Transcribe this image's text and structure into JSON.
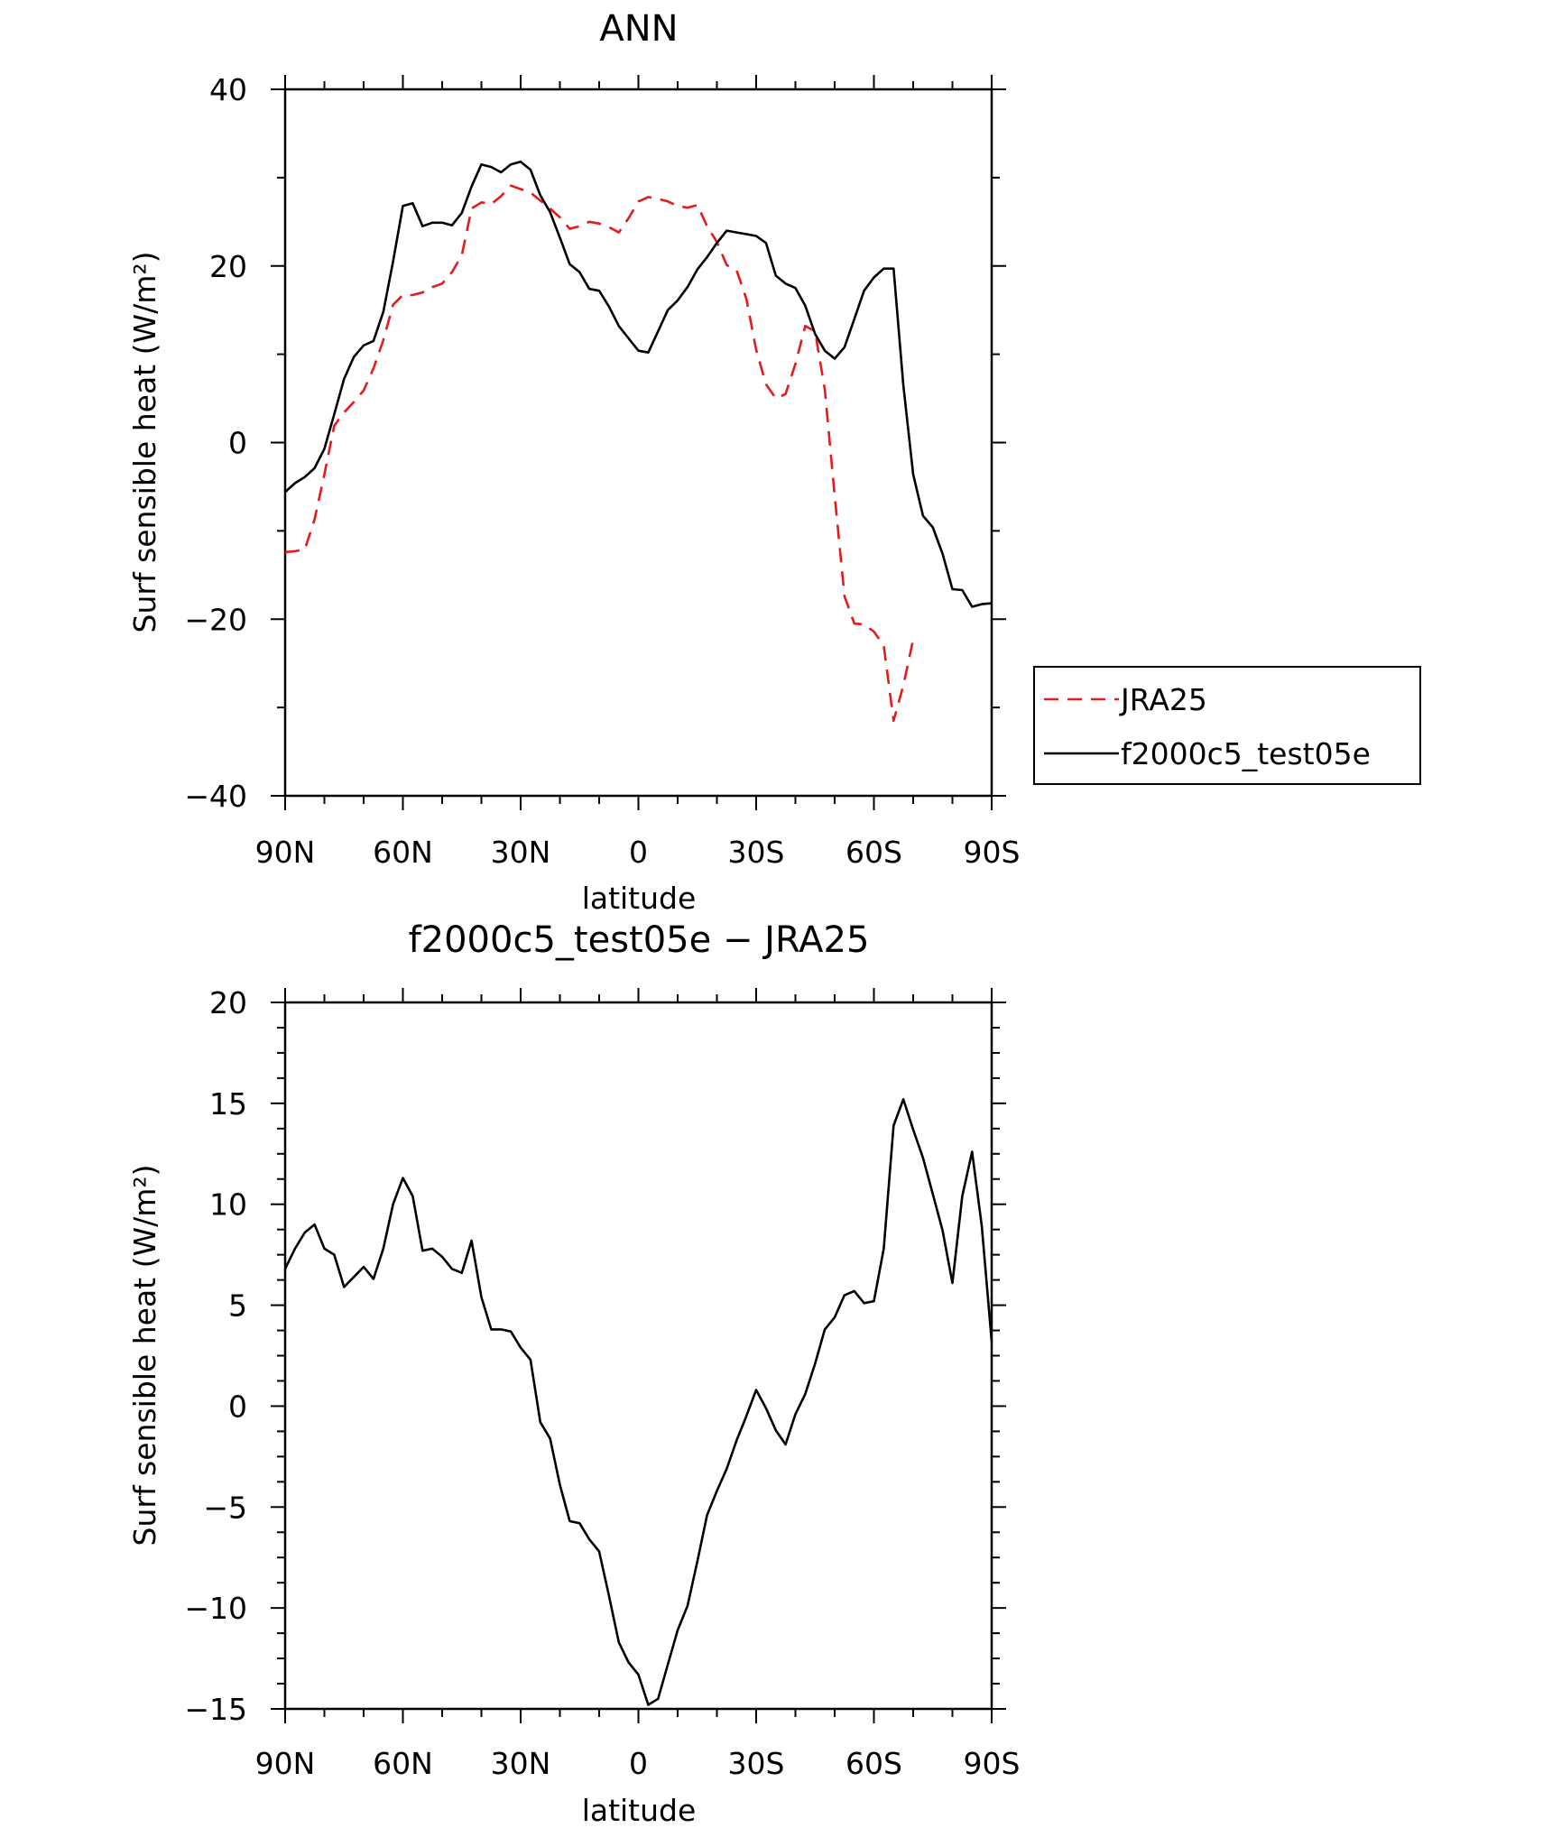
{
  "chart_data": [
    {
      "type": "line",
      "title": "ANN",
      "xlabel": "latitude",
      "ylabel": "Surf sensible heat (W/m²)",
      "xlim": [
        90,
        -90
      ],
      "ylim": [
        -40,
        40
      ],
      "x_ticks": [
        {
          "value": 90,
          "label": "90N"
        },
        {
          "value": 60,
          "label": "60N"
        },
        {
          "value": 30,
          "label": "30N"
        },
        {
          "value": 0,
          "label": "0"
        },
        {
          "value": -30,
          "label": "30S"
        },
        {
          "value": -60,
          "label": "60S"
        },
        {
          "value": -90,
          "label": "90S"
        }
      ],
      "y_ticks": [
        {
          "value": 40,
          "label": "40"
        },
        {
          "value": 20,
          "label": "20"
        },
        {
          "value": 0,
          "label": "0"
        },
        {
          "value": -20,
          "label": "−20"
        },
        {
          "value": -40,
          "label": "−40"
        }
      ],
      "legend": {
        "position": "right"
      },
      "series": [
        {
          "name": "JRA25",
          "color": "#e41a1c",
          "dash": "dashed",
          "x": [
            90,
            87.5,
            85,
            82.5,
            80,
            77.5,
            75,
            72.5,
            70,
            67.5,
            65,
            62.5,
            60,
            57.5,
            55,
            52.5,
            50,
            47.5,
            45,
            42.5,
            40,
            37.5,
            35,
            32.5,
            30,
            27.5,
            25,
            22.5,
            20,
            17.5,
            15,
            12.5,
            10,
            7.5,
            5,
            2.5,
            0,
            -2.5,
            -5,
            -7.5,
            -10,
            -12.5,
            -15,
            -17.5,
            -20,
            -22.5,
            -25,
            -27.5,
            -30,
            -32.5,
            -35,
            -37.5,
            -40,
            -42.5,
            -45,
            -47.5,
            -50,
            -52.5,
            -55,
            -57.5,
            -60,
            -62.5,
            -65,
            -67.5,
            -70,
            -72.5,
            -75,
            -77.5,
            -80,
            -82.5,
            -85,
            -87.5,
            -90
          ],
          "values": [
            -12.4,
            -12.3,
            -12.1,
            -8.7,
            -3.6,
            1.9,
            3.4,
            4.6,
            5.9,
            8.4,
            11.6,
            15.6,
            16.7,
            16.7,
            17.0,
            17.6,
            18.0,
            19.3,
            21.2,
            26.5,
            27.2,
            27.0,
            27.9,
            29.1,
            28.7,
            28.3,
            27.4,
            26.5,
            25.5,
            24.2,
            24.5,
            25.0,
            24.8,
            24.4,
            23.8,
            25.4,
            27.3,
            27.8,
            27.6,
            27.3,
            26.8,
            26.6,
            26.9,
            24.5,
            22.7,
            20.1,
            19.5,
            16.3,
            10.5,
            6.6,
            5.0,
            5.5,
            8.9,
            13.2,
            12.6,
            6.0,
            -6.0,
            -17.4,
            -20.5,
            -20.6,
            -21.4,
            -23.0,
            -31.5,
            -27.5,
            -22.3,
            null,
            null,
            null,
            null,
            null,
            null,
            null,
            null
          ]
        },
        {
          "name": "f2000c5_test05e",
          "color": "#000000",
          "dash": "solid",
          "x": [
            90,
            87.5,
            85,
            82.5,
            80,
            77.5,
            75,
            72.5,
            70,
            67.5,
            65,
            62.5,
            60,
            57.5,
            55,
            52.5,
            50,
            47.5,
            45,
            42.5,
            40,
            37.5,
            35,
            32.5,
            30,
            27.5,
            25,
            22.5,
            20,
            17.5,
            15,
            12.5,
            10,
            7.5,
            5,
            2.5,
            0,
            -2.5,
            -5,
            -7.5,
            -10,
            -12.5,
            -15,
            -17.5,
            -20,
            -22.5,
            -25,
            -27.5,
            -30,
            -32.5,
            -35,
            -37.5,
            -40,
            -42.5,
            -45,
            -47.5,
            -50,
            -52.5,
            -55,
            -57.5,
            -60,
            -62.5,
            -65,
            -67.5,
            -70,
            -72.5,
            -75,
            -77.5,
            -80,
            -82.5,
            -85,
            -87.5,
            -90
          ],
          "values": [
            -5.6,
            -4.6,
            -3.9,
            -2.9,
            -0.7,
            3.2,
            7.2,
            9.7,
            11.0,
            11.5,
            14.8,
            20.5,
            26.8,
            27.1,
            24.5,
            24.9,
            24.9,
            24.6,
            26.0,
            29.0,
            31.5,
            31.2,
            30.6,
            31.5,
            31.8,
            30.9,
            28.0,
            26.1,
            23.2,
            20.2,
            19.3,
            17.4,
            17.2,
            15.4,
            13.2,
            11.8,
            10.4,
            10.2,
            12.6,
            15.0,
            16.1,
            17.6,
            19.6,
            21.0,
            22.6,
            24.0,
            23.8,
            23.6,
            23.4,
            22.6,
            18.9,
            18.0,
            17.5,
            15.5,
            12.3,
            10.4,
            9.5,
            10.8,
            14.0,
            17.2,
            18.7,
            19.7,
            19.7,
            6.5,
            -3.6,
            -8.3,
            -9.6,
            -12.6,
            -16.6,
            -16.7,
            -18.6,
            -18.3,
            -18.2
          ]
        }
      ]
    },
    {
      "type": "line",
      "title": "f2000c5_test05e − JRA25",
      "xlabel": "latitude",
      "ylabel": "Surf sensible heat (W/m²)",
      "xlim": [
        90,
        -90
      ],
      "ylim": [
        -15,
        20
      ],
      "x_ticks": [
        {
          "value": 90,
          "label": "90N"
        },
        {
          "value": 60,
          "label": "60N"
        },
        {
          "value": 30,
          "label": "30N"
        },
        {
          "value": 0,
          "label": "0"
        },
        {
          "value": -30,
          "label": "30S"
        },
        {
          "value": -60,
          "label": "60S"
        },
        {
          "value": -90,
          "label": "90S"
        }
      ],
      "y_ticks": [
        {
          "value": 20,
          "label": "20"
        },
        {
          "value": 15,
          "label": "15"
        },
        {
          "value": 10,
          "label": "10"
        },
        {
          "value": 5,
          "label": "5"
        },
        {
          "value": 0,
          "label": "0"
        },
        {
          "value": -5,
          "label": "−5"
        },
        {
          "value": -10,
          "label": "−10"
        },
        {
          "value": -15,
          "label": "−15"
        }
      ],
      "series": [
        {
          "name": "f2000c5_test05e − JRA25",
          "color": "#000000",
          "dash": "solid",
          "x": [
            90,
            87.5,
            85,
            82.5,
            80,
            77.5,
            75,
            72.5,
            70,
            67.5,
            65,
            62.5,
            60,
            57.5,
            55,
            52.5,
            50,
            47.5,
            45,
            42.5,
            40,
            37.5,
            35,
            32.5,
            30,
            27.5,
            25,
            22.5,
            20,
            17.5,
            15,
            12.5,
            10,
            7.5,
            5,
            2.5,
            0,
            -2.5,
            -5,
            -7.5,
            -10,
            -12.5,
            -15,
            -17.5,
            -20,
            -22.5,
            -25,
            -27.5,
            -30,
            -32.5,
            -35,
            -37.5,
            -40,
            -42.5,
            -45,
            -47.5,
            -50,
            -52.5,
            -55,
            -57.5,
            -60,
            -62.5,
            -65,
            -67.5,
            -70,
            -72.5,
            -75,
            -77.5,
            -80,
            -82.5,
            -85,
            -87.5,
            -90
          ],
          "values": [
            6.8,
            7.8,
            8.6,
            9.0,
            7.8,
            7.5,
            5.9,
            6.4,
            6.9,
            6.3,
            7.8,
            10.0,
            11.3,
            10.4,
            7.7,
            7.8,
            7.4,
            6.8,
            6.6,
            8.2,
            5.4,
            3.8,
            3.8,
            3.7,
            2.9,
            2.3,
            -0.8,
            -1.6,
            -3.9,
            -5.7,
            -5.8,
            -6.6,
            -7.2,
            -9.4,
            -11.7,
            -12.7,
            -13.3,
            -14.8,
            -14.5,
            -12.8,
            -11.1,
            -9.9,
            -7.7,
            -5.4,
            -4.2,
            -3.1,
            -1.7,
            -0.5,
            0.8,
            -0.1,
            -1.2,
            -1.9,
            -0.4,
            0.6,
            2.1,
            3.8,
            4.4,
            5.5,
            5.7,
            5.1,
            5.2,
            7.8,
            13.9,
            15.2,
            13.7,
            12.3,
            10.5,
            8.7,
            6.1,
            10.4,
            12.6,
            8.9,
            3.2
          ]
        }
      ]
    }
  ]
}
